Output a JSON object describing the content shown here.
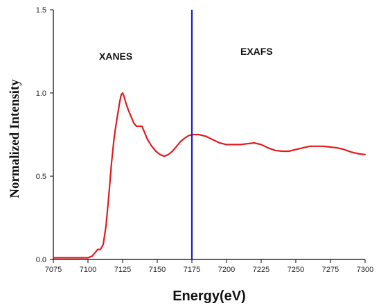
{
  "chart_data": {
    "type": "line",
    "title": "",
    "xlabel": "Energy(eV)",
    "ylabel": "Normalized Intensity",
    "xlim": [
      7075,
      7300
    ],
    "ylim": [
      0.0,
      1.5
    ],
    "x_ticks": [
      7075,
      7100,
      7125,
      7150,
      7175,
      7200,
      7225,
      7250,
      7275,
      7300
    ],
    "x_tick_labels": [
      "7075",
      "7100",
      "7125",
      "7150",
      "7175",
      "7200",
      "7225",
      "7250",
      "7275",
      "7300"
    ],
    "y_ticks": [
      0.0,
      0.5,
      1.0,
      1.5
    ],
    "y_tick_labels": [
      "0.0",
      "0.5",
      "1.0",
      "1.5"
    ],
    "grid": false,
    "series": [
      {
        "color": "#e31a1c",
        "x": [
          7075,
          7090,
          7100,
          7103,
          7105,
          7107,
          7109,
          7111,
          7113,
          7115,
          7117,
          7119,
          7121,
          7123,
          7124,
          7125,
          7126,
          7127,
          7129,
          7131,
          7133,
          7135,
          7137,
          7139,
          7141,
          7143,
          7146,
          7149,
          7152,
          7155,
          7158,
          7161,
          7164,
          7167,
          7170,
          7173,
          7176,
          7180,
          7185,
          7190,
          7195,
          7200,
          7205,
          7210,
          7215,
          7220,
          7225,
          7230,
          7235,
          7240,
          7245,
          7250,
          7255,
          7260,
          7265,
          7270,
          7275,
          7280,
          7285,
          7290,
          7295,
          7300
        ],
        "y": [
          0.01,
          0.01,
          0.01,
          0.02,
          0.04,
          0.06,
          0.06,
          0.09,
          0.2,
          0.38,
          0.58,
          0.74,
          0.85,
          0.95,
          0.99,
          1.0,
          0.98,
          0.95,
          0.9,
          0.86,
          0.82,
          0.8,
          0.8,
          0.8,
          0.76,
          0.72,
          0.68,
          0.65,
          0.63,
          0.62,
          0.63,
          0.65,
          0.68,
          0.71,
          0.73,
          0.745,
          0.75,
          0.75,
          0.74,
          0.72,
          0.7,
          0.69,
          0.69,
          0.69,
          0.695,
          0.7,
          0.69,
          0.67,
          0.655,
          0.65,
          0.65,
          0.66,
          0.67,
          0.68,
          0.68,
          0.68,
          0.675,
          0.67,
          0.66,
          0.645,
          0.635,
          0.63
        ]
      }
    ],
    "divider": {
      "x": 7175,
      "color": "#1a1ad4"
    },
    "annotations": [
      {
        "text": "XANES",
        "x": 7108,
        "y": 1.2
      },
      {
        "text": "EXAFS",
        "x": 7210,
        "y": 1.23
      }
    ]
  }
}
